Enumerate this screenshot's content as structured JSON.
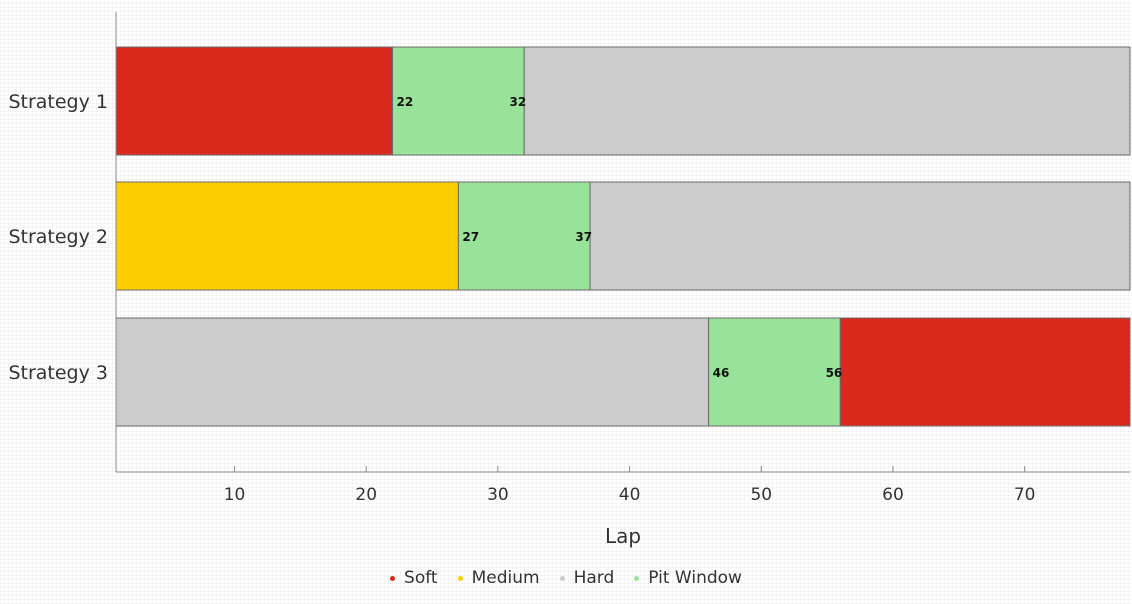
{
  "chart_data": {
    "type": "bar",
    "orientation": "horizontal",
    "stacked": true,
    "categories": [
      "Strategy 1",
      "Strategy 2",
      "Strategy 3"
    ],
    "xlabel": "Lap",
    "xlim": [
      1,
      78
    ],
    "xticks": [
      10,
      20,
      30,
      40,
      50,
      60,
      70
    ],
    "grid": false,
    "legend_position": "bottom",
    "compounds": [
      {
        "name": "Soft",
        "color": "#d9291c"
      },
      {
        "name": "Medium",
        "color": "#fccd00"
      },
      {
        "name": "Hard",
        "color": "#cccccc"
      },
      {
        "name": "Pit Window",
        "color": "#99e299"
      }
    ],
    "strategies": [
      {
        "name": "Strategy 1",
        "segments": [
          {
            "compound": "Soft",
            "start": 1,
            "end": 22
          },
          {
            "compound": "Pit Window",
            "start": 22,
            "end": 32
          },
          {
            "compound": "Hard",
            "start": 32,
            "end": 78
          }
        ],
        "pit_labels": [
          "22",
          "32"
        ]
      },
      {
        "name": "Strategy 2",
        "segments": [
          {
            "compound": "Medium",
            "start": 1,
            "end": 27
          },
          {
            "compound": "Pit Window",
            "start": 27,
            "end": 37
          },
          {
            "compound": "Hard",
            "start": 37,
            "end": 78
          }
        ],
        "pit_labels": [
          "27",
          "37"
        ]
      },
      {
        "name": "Strategy 3",
        "segments": [
          {
            "compound": "Hard",
            "start": 1,
            "end": 46
          },
          {
            "compound": "Pit Window",
            "start": 46,
            "end": 56
          },
          {
            "compound": "Soft",
            "start": 56,
            "end": 78
          }
        ],
        "pit_labels": [
          "46",
          "56"
        ]
      }
    ]
  }
}
